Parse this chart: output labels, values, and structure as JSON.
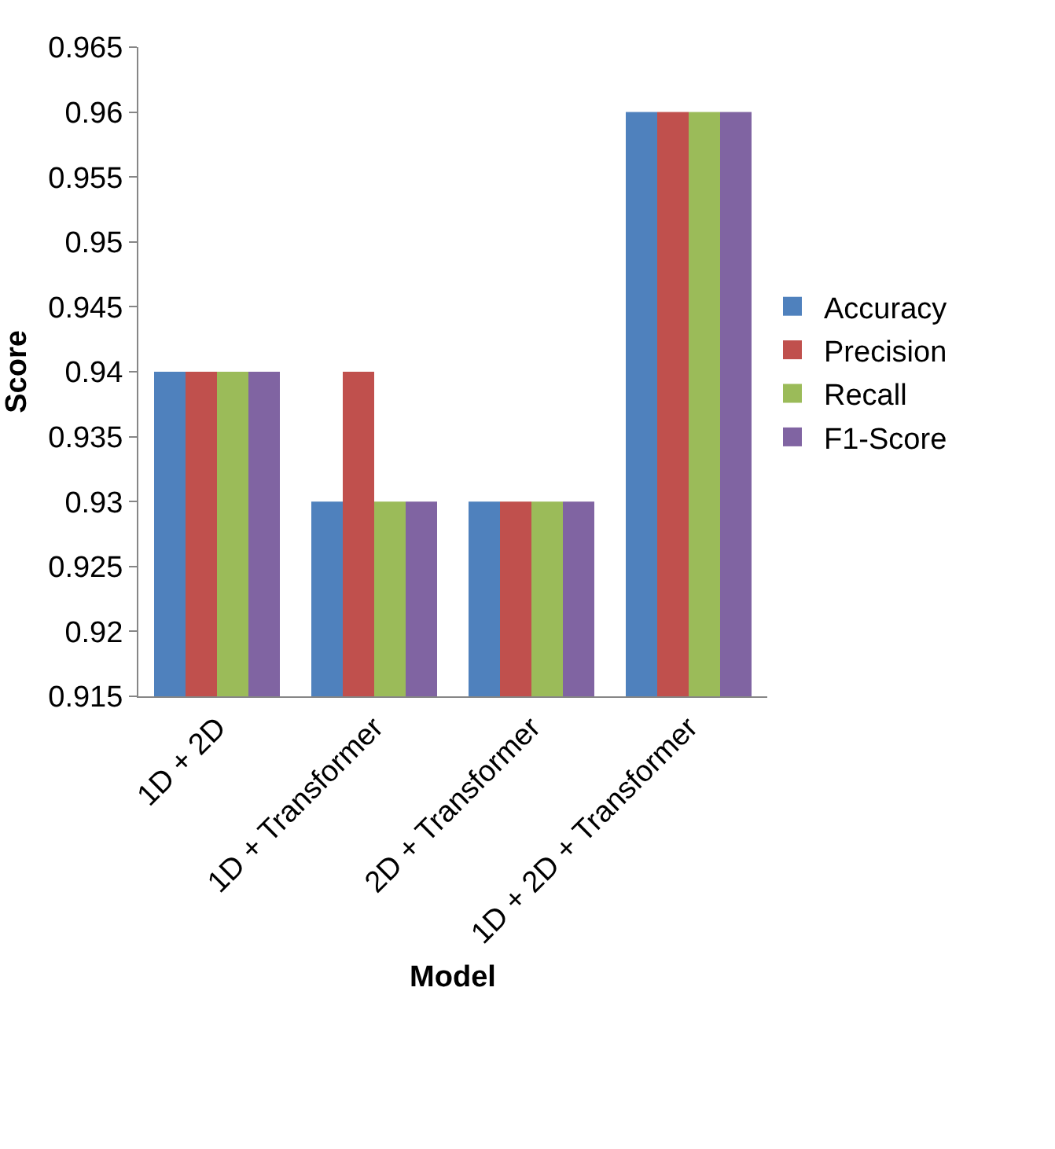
{
  "chart_data": {
    "type": "bar",
    "xlabel": "Model",
    "ylabel": "Score",
    "categories": [
      "1D + 2D",
      "1D + Transformer",
      "2D + Transformer",
      "1D + 2D + Transformer"
    ],
    "series": [
      {
        "name": "Accuracy",
        "color": "#4f81bd",
        "values": [
          0.94,
          0.93,
          0.93,
          0.96
        ]
      },
      {
        "name": "Precision",
        "color": "#c0504d",
        "values": [
          0.94,
          0.94,
          0.93,
          0.96
        ]
      },
      {
        "name": "Recall",
        "color": "#9bbb59",
        "values": [
          0.94,
          0.93,
          0.93,
          0.96
        ]
      },
      {
        "name": "F1-Score",
        "color": "#8064a2",
        "values": [
          0.94,
          0.93,
          0.93,
          0.96
        ]
      }
    ],
    "ylim": [
      0.915,
      0.965
    ],
    "yticks": [
      0.915,
      0.92,
      0.925,
      0.93,
      0.935,
      0.94,
      0.945,
      0.95,
      0.955,
      0.96,
      0.965
    ],
    "legend": "right"
  }
}
